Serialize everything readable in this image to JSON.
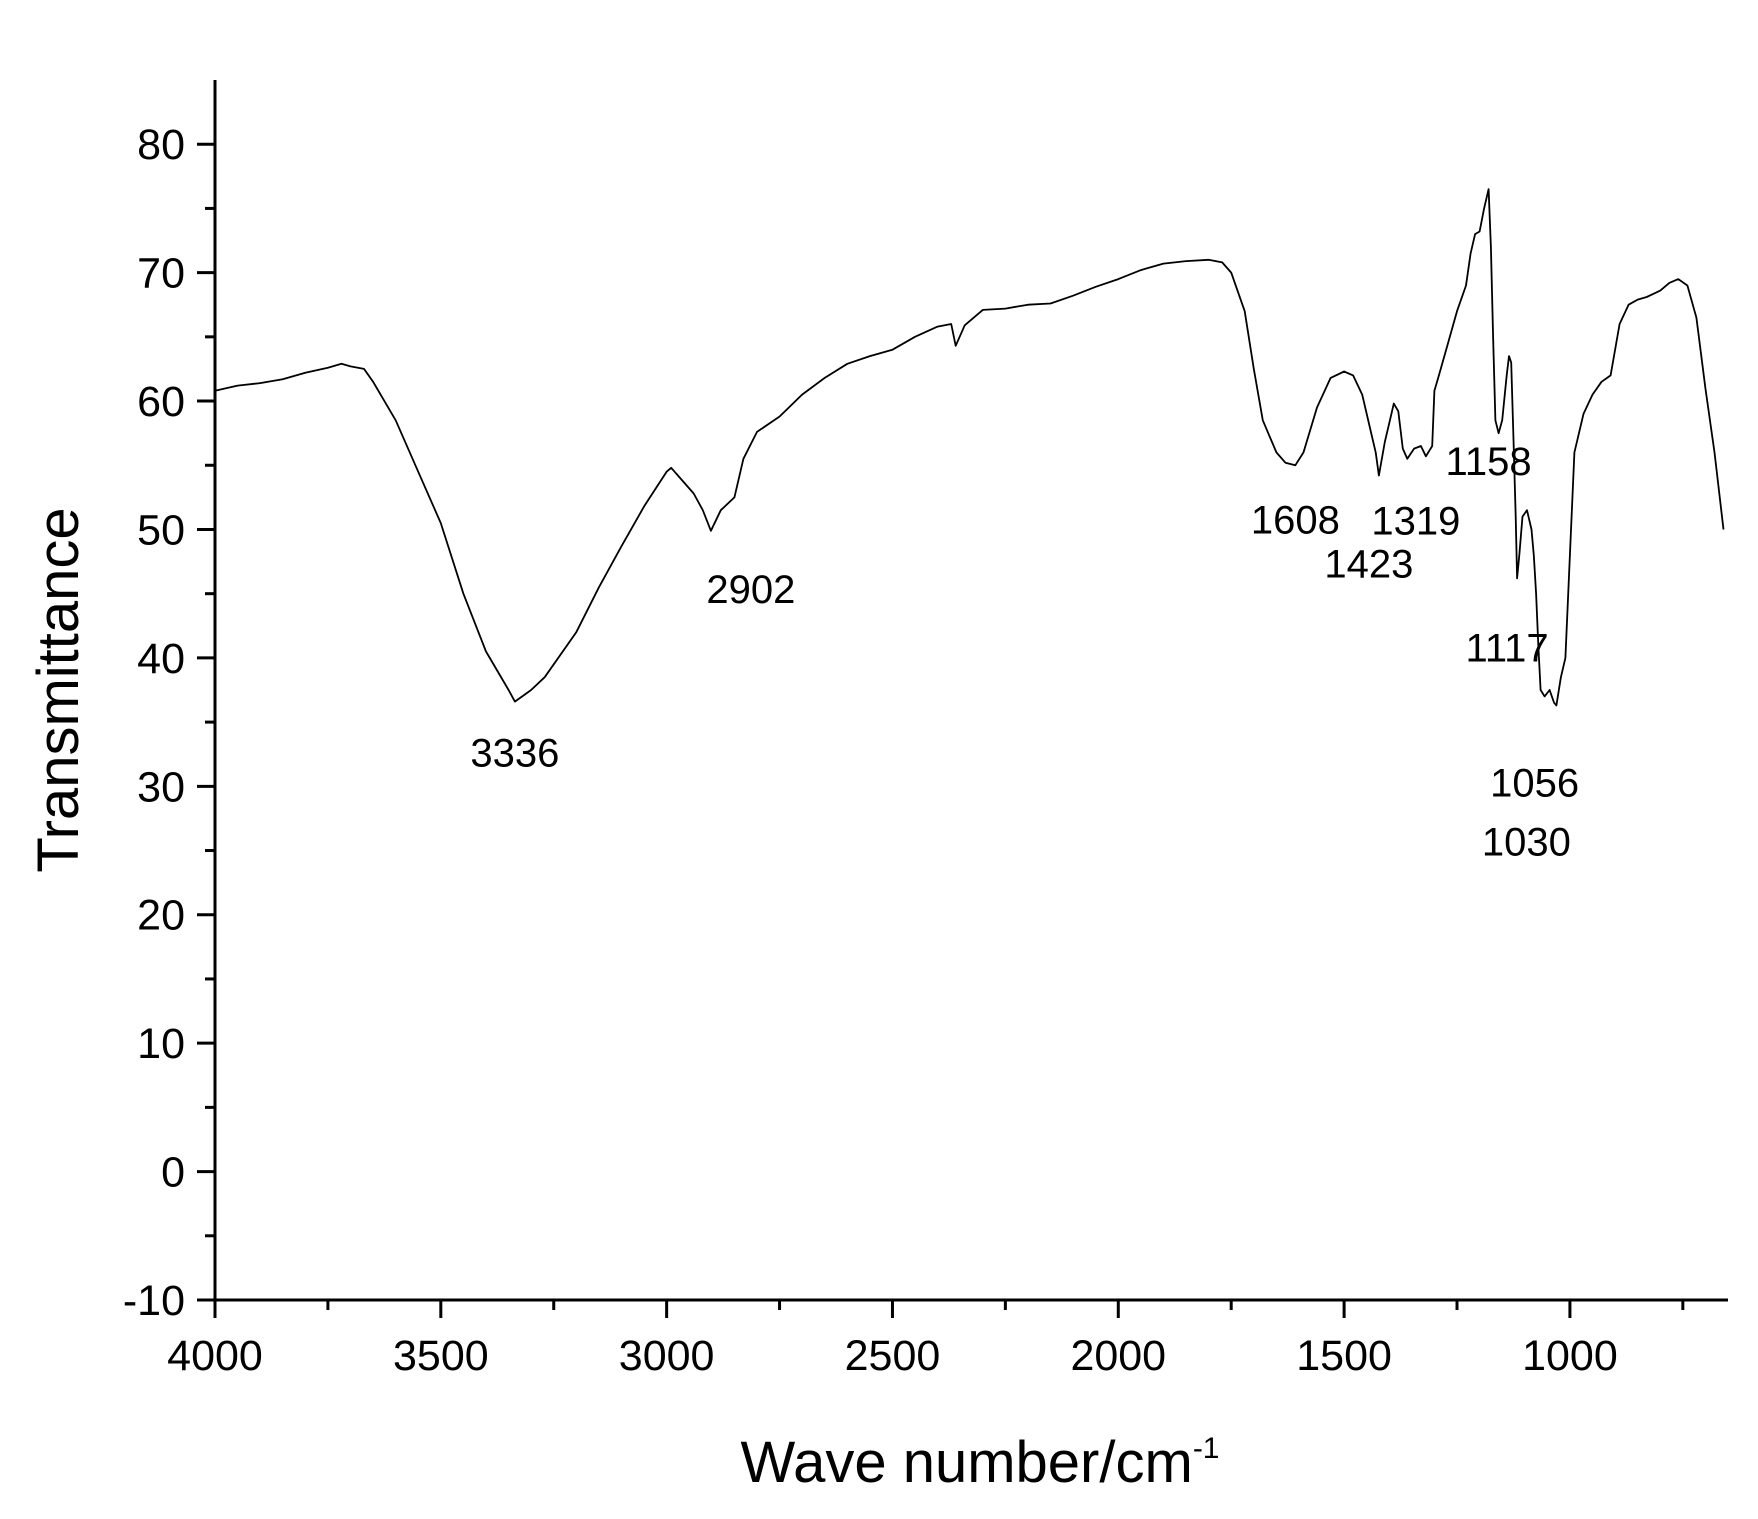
{
  "chart_data": {
    "type": "line",
    "title": "",
    "xlabel_main": "Wave number/cm",
    "xlabel_sup": "-1",
    "ylabel": "Transmittance",
    "xlim": [
      4000,
      650
    ],
    "ylim": [
      -10,
      85
    ],
    "x_ticks": [
      4000,
      3500,
      3000,
      2500,
      2000,
      1500,
      1000
    ],
    "x_tick_labels": [
      "4000",
      "3500",
      "3000",
      "2500",
      "2000",
      "1500",
      "1000"
    ],
    "y_ticks": [
      -10,
      0,
      10,
      20,
      30,
      40,
      50,
      60,
      70,
      80
    ],
    "y_tick_labels": [
      "-10",
      "0",
      "10",
      "20",
      "30",
      "40",
      "50",
      "60",
      "70",
      "80"
    ],
    "grid": false,
    "line_color": "#000000",
    "series": [
      {
        "points": [
          [
            4000,
            60.8
          ],
          [
            3950,
            61.2
          ],
          [
            3900,
            61.4
          ],
          [
            3850,
            61.7
          ],
          [
            3800,
            62.2
          ],
          [
            3750,
            62.6
          ],
          [
            3720,
            62.9
          ],
          [
            3700,
            62.7
          ],
          [
            3670,
            62.5
          ],
          [
            3650,
            61.5
          ],
          [
            3600,
            58.5
          ],
          [
            3550,
            54.5
          ],
          [
            3500,
            50.5
          ],
          [
            3450,
            45
          ],
          [
            3400,
            40.5
          ],
          [
            3350,
            37.5
          ],
          [
            3336,
            36.6
          ],
          [
            3300,
            37.5
          ],
          [
            3270,
            38.5
          ],
          [
            3200,
            42
          ],
          [
            3150,
            45.5
          ],
          [
            3100,
            48.7
          ],
          [
            3050,
            51.8
          ],
          [
            3000,
            54.5
          ],
          [
            2990,
            54.8
          ],
          [
            2970,
            54
          ],
          [
            2940,
            52.8
          ],
          [
            2920,
            51.5
          ],
          [
            2902,
            49.9
          ],
          [
            2880,
            51.5
          ],
          [
            2850,
            52.5
          ],
          [
            2830,
            55.5
          ],
          [
            2800,
            57.6
          ],
          [
            2750,
            58.8
          ],
          [
            2700,
            60.5
          ],
          [
            2650,
            61.8
          ],
          [
            2600,
            62.9
          ],
          [
            2550,
            63.5
          ],
          [
            2500,
            64
          ],
          [
            2450,
            65
          ],
          [
            2400,
            65.8
          ],
          [
            2370,
            66
          ],
          [
            2360,
            64.3
          ],
          [
            2340,
            65.9
          ],
          [
            2300,
            67.1
          ],
          [
            2250,
            67.2
          ],
          [
            2200,
            67.5
          ],
          [
            2150,
            67.6
          ],
          [
            2100,
            68.2
          ],
          [
            2050,
            68.9
          ],
          [
            2000,
            69.5
          ],
          [
            1950,
            70.2
          ],
          [
            1900,
            70.7
          ],
          [
            1850,
            70.9
          ],
          [
            1800,
            71
          ],
          [
            1770,
            70.8
          ],
          [
            1750,
            70
          ],
          [
            1720,
            67
          ],
          [
            1700,
            62.5
          ],
          [
            1680,
            58.5
          ],
          [
            1650,
            56
          ],
          [
            1630,
            55.2
          ],
          [
            1608,
            55
          ],
          [
            1590,
            56
          ],
          [
            1560,
            59.5
          ],
          [
            1530,
            61.8
          ],
          [
            1500,
            62.3
          ],
          [
            1480,
            62
          ],
          [
            1460,
            60.5
          ],
          [
            1440,
            57.5
          ],
          [
            1430,
            56
          ],
          [
            1423,
            54.2
          ],
          [
            1410,
            56.8
          ],
          [
            1400,
            58.3
          ],
          [
            1390,
            59.8
          ],
          [
            1380,
            59.2
          ],
          [
            1370,
            56.3
          ],
          [
            1360,
            55.5
          ],
          [
            1345,
            56.3
          ],
          [
            1330,
            56.5
          ],
          [
            1319,
            55.7
          ],
          [
            1305,
            56.5
          ],
          [
            1300,
            60.8
          ],
          [
            1290,
            62
          ],
          [
            1270,
            64.5
          ],
          [
            1250,
            67
          ],
          [
            1230,
            69
          ],
          [
            1220,
            71.5
          ],
          [
            1210,
            73
          ],
          [
            1200,
            73.2
          ],
          [
            1190,
            75
          ],
          [
            1180,
            76.5
          ],
          [
            1175,
            72
          ],
          [
            1170,
            65
          ],
          [
            1165,
            58.5
          ],
          [
            1158,
            57.5
          ],
          [
            1150,
            58.5
          ],
          [
            1140,
            62
          ],
          [
            1135,
            63.5
          ],
          [
            1130,
            63
          ],
          [
            1125,
            57
          ],
          [
            1120,
            51
          ],
          [
            1117,
            46.2
          ],
          [
            1112,
            48
          ],
          [
            1105,
            51
          ],
          [
            1095,
            51.5
          ],
          [
            1085,
            50
          ],
          [
            1080,
            48
          ],
          [
            1075,
            45
          ],
          [
            1070,
            41
          ],
          [
            1065,
            37.5
          ],
          [
            1056,
            37
          ],
          [
            1045,
            37.5
          ],
          [
            1035,
            36.5
          ],
          [
            1030,
            36.3
          ],
          [
            1020,
            38.5
          ],
          [
            1010,
            40
          ],
          [
            1000,
            48
          ],
          [
            990,
            56
          ],
          [
            970,
            59
          ],
          [
            950,
            60.5
          ],
          [
            930,
            61.5
          ],
          [
            910,
            62
          ],
          [
            890,
            66
          ],
          [
            870,
            67.5
          ],
          [
            850,
            67.9
          ],
          [
            830,
            68.1
          ],
          [
            800,
            68.6
          ],
          [
            780,
            69.2
          ],
          [
            760,
            69.5
          ],
          [
            740,
            69
          ],
          [
            720,
            66.5
          ],
          [
            700,
            61
          ],
          [
            680,
            56
          ],
          [
            660,
            50
          ]
        ]
      }
    ],
    "annotations": [
      {
        "text": "3336",
        "x": 3336,
        "y": 36.6
      },
      {
        "text": "2902",
        "x": 2902,
        "y": 49.9
      },
      {
        "text": "1608",
        "x": 1608,
        "y": 55.0
      },
      {
        "text": "1423",
        "x": 1423,
        "y": 54.2
      },
      {
        "text": "1319",
        "x": 1319,
        "y": 55.7
      },
      {
        "text": "1158",
        "x": 1158,
        "y": 57.5
      },
      {
        "text": "1117",
        "x": 1117,
        "y": 46.2
      },
      {
        "text": "1056",
        "x": 1056,
        "y": 37.0
      },
      {
        "text": "1030",
        "x": 1030,
        "y": 36.3
      }
    ]
  }
}
